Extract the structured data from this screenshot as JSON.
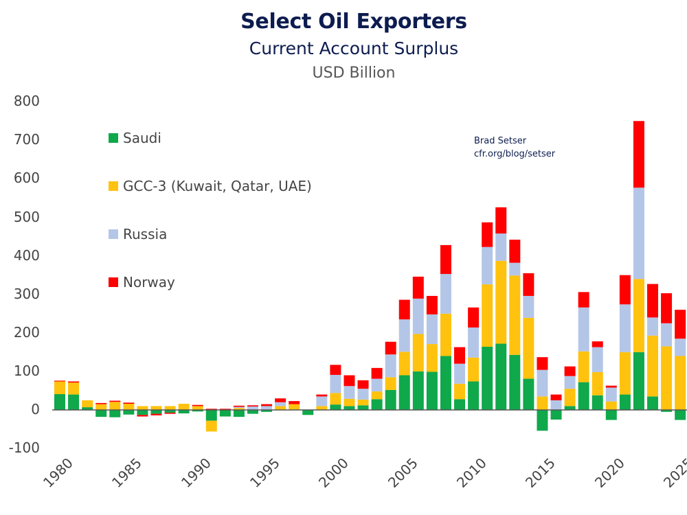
{
  "chart_data": {
    "type": "bar",
    "stacked": true,
    "title": "Select Oil Exporters",
    "subtitle": "Current Account Surplus",
    "ylabel": "USD Billion",
    "xlabel": "",
    "ylim": [
      -100,
      800
    ],
    "yticks": [
      800,
      700,
      600,
      500,
      400,
      300,
      200,
      100,
      0,
      -100
    ],
    "xtick_labels": [
      "1980",
      "1985",
      "1990",
      "1995",
      "2000",
      "2005",
      "2010",
      "2015",
      "2020",
      "2025"
    ],
    "grid": false,
    "legend_position": "top-left",
    "categories": [
      1980,
      1981,
      1982,
      1983,
      1984,
      1985,
      1986,
      1987,
      1988,
      1989,
      1990,
      1991,
      1992,
      1993,
      1994,
      1995,
      1996,
      1997,
      1998,
      1999,
      2000,
      2001,
      2002,
      2003,
      2004,
      2005,
      2006,
      2007,
      2008,
      2009,
      2010,
      2011,
      2012,
      2013,
      2014,
      2015,
      2016,
      2017,
      2018,
      2019,
      2020,
      2021,
      2022,
      2023,
      2024,
      2025
    ],
    "series": [
      {
        "name": "Saudi",
        "color": "#0fa84b",
        "values": [
          41,
          40,
          7,
          -18,
          -19,
          -12,
          -13,
          -10,
          -7,
          -9,
          -4,
          -28,
          -17,
          -18,
          -10,
          -5,
          0,
          0,
          -13,
          0,
          14,
          10,
          12,
          28,
          52,
          90,
          100,
          99,
          140,
          28,
          74,
          164,
          172,
          143,
          81,
          -54,
          -25,
          10,
          72,
          38,
          -26,
          40,
          150,
          35,
          -5,
          -26
        ]
      },
      {
        "name": "GCC-3 (Kuwait, Qatar, UAE)",
        "color": "#ffc20e",
        "values": [
          33,
          31,
          18,
          15,
          21,
          16,
          10,
          10,
          10,
          16,
          10,
          -28,
          0,
          5,
          0,
          0,
          10,
          15,
          0,
          10,
          30,
          19,
          15,
          20,
          33,
          61,
          97,
          72,
          110,
          40,
          62,
          162,
          215,
          206,
          158,
          35,
          0,
          45,
          80,
          60,
          22,
          110,
          190,
          158,
          165,
          140
        ]
      },
      {
        "name": "Russia",
        "color": "#b4c6e7",
        "values": [
          0,
          0,
          0,
          0,
          0,
          0,
          0,
          0,
          0,
          0,
          0,
          0,
          0,
          3,
          9,
          10,
          10,
          0,
          0,
          25,
          47,
          33,
          28,
          33,
          59,
          84,
          92,
          77,
          103,
          52,
          78,
          97,
          71,
          33,
          57,
          69,
          25,
          33,
          114,
          65,
          36,
          124,
          237,
          47,
          60,
          45
        ]
      },
      {
        "name": "Norway",
        "color": "#ff0000",
        "values": [
          2,
          3,
          0,
          3,
          3,
          3,
          -4,
          -4,
          -3,
          0,
          3,
          3,
          3,
          3,
          3,
          5,
          10,
          8,
          0,
          5,
          26,
          28,
          22,
          28,
          33,
          51,
          57,
          48,
          75,
          43,
          52,
          64,
          68,
          60,
          59,
          33,
          15,
          25,
          40,
          15,
          5,
          76,
          173,
          87,
          78,
          75
        ]
      }
    ]
  },
  "legend": {
    "items": [
      {
        "label": "Saudi",
        "color": "#0fa84b"
      },
      {
        "label": "GCC-3 (Kuwait, Qatar, UAE)",
        "color": "#ffc20e"
      },
      {
        "label": "Russia",
        "color": "#b4c6e7"
      },
      {
        "label": "Norway",
        "color": "#ff0000"
      }
    ]
  },
  "credit": {
    "author": "Brad Setser",
    "source": "cfr.org/blog/setser"
  }
}
